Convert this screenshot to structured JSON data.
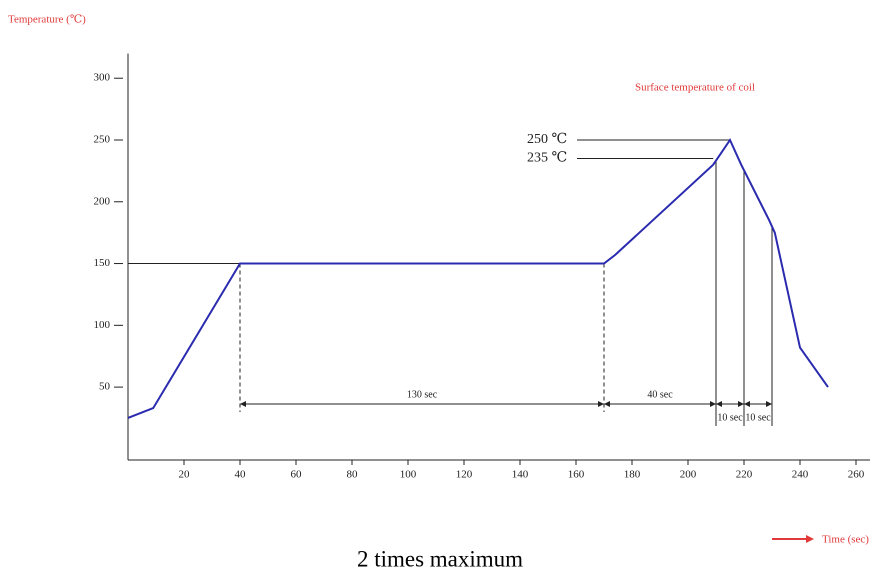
{
  "chart_data": {
    "type": "line",
    "title": "Temperature (℃)",
    "subtitle": "Surface temperature of coil",
    "x_label": "Time (sec)",
    "caption": "2 times maximum",
    "x": [
      0,
      9,
      40,
      170,
      174,
      209,
      215,
      219,
      229,
      231,
      240,
      250
    ],
    "series": [
      {
        "name": "Surface temperature of coil",
        "color": "#2b2bb0",
        "values": [
          25,
          33,
          150,
          150,
          157,
          230,
          250,
          230,
          185,
          175,
          82,
          50
        ]
      }
    ],
    "xlim": [
      0,
      265
    ],
    "ylim": [
      -9,
      320
    ],
    "xticks": [
      20,
      40,
      60,
      80,
      100,
      120,
      140,
      160,
      180,
      200,
      220,
      240,
      260
    ],
    "yticks": [
      50,
      100,
      150,
      200,
      250,
      300
    ],
    "levels": [
      {
        "value": 250,
        "label": "250 ℃"
      },
      {
        "value": 235,
        "label": "235 ℃"
      }
    ],
    "spans": [
      {
        "from": 40,
        "to": 170,
        "label": "130 sec"
      },
      {
        "from": 170,
        "to": 210,
        "label": "40 sec"
      },
      {
        "from": 210,
        "to": 220,
        "label": "10 sec"
      },
      {
        "from": 220,
        "to": 230,
        "label": "10 sec"
      }
    ],
    "annotation_color": "#e03a3a"
  }
}
